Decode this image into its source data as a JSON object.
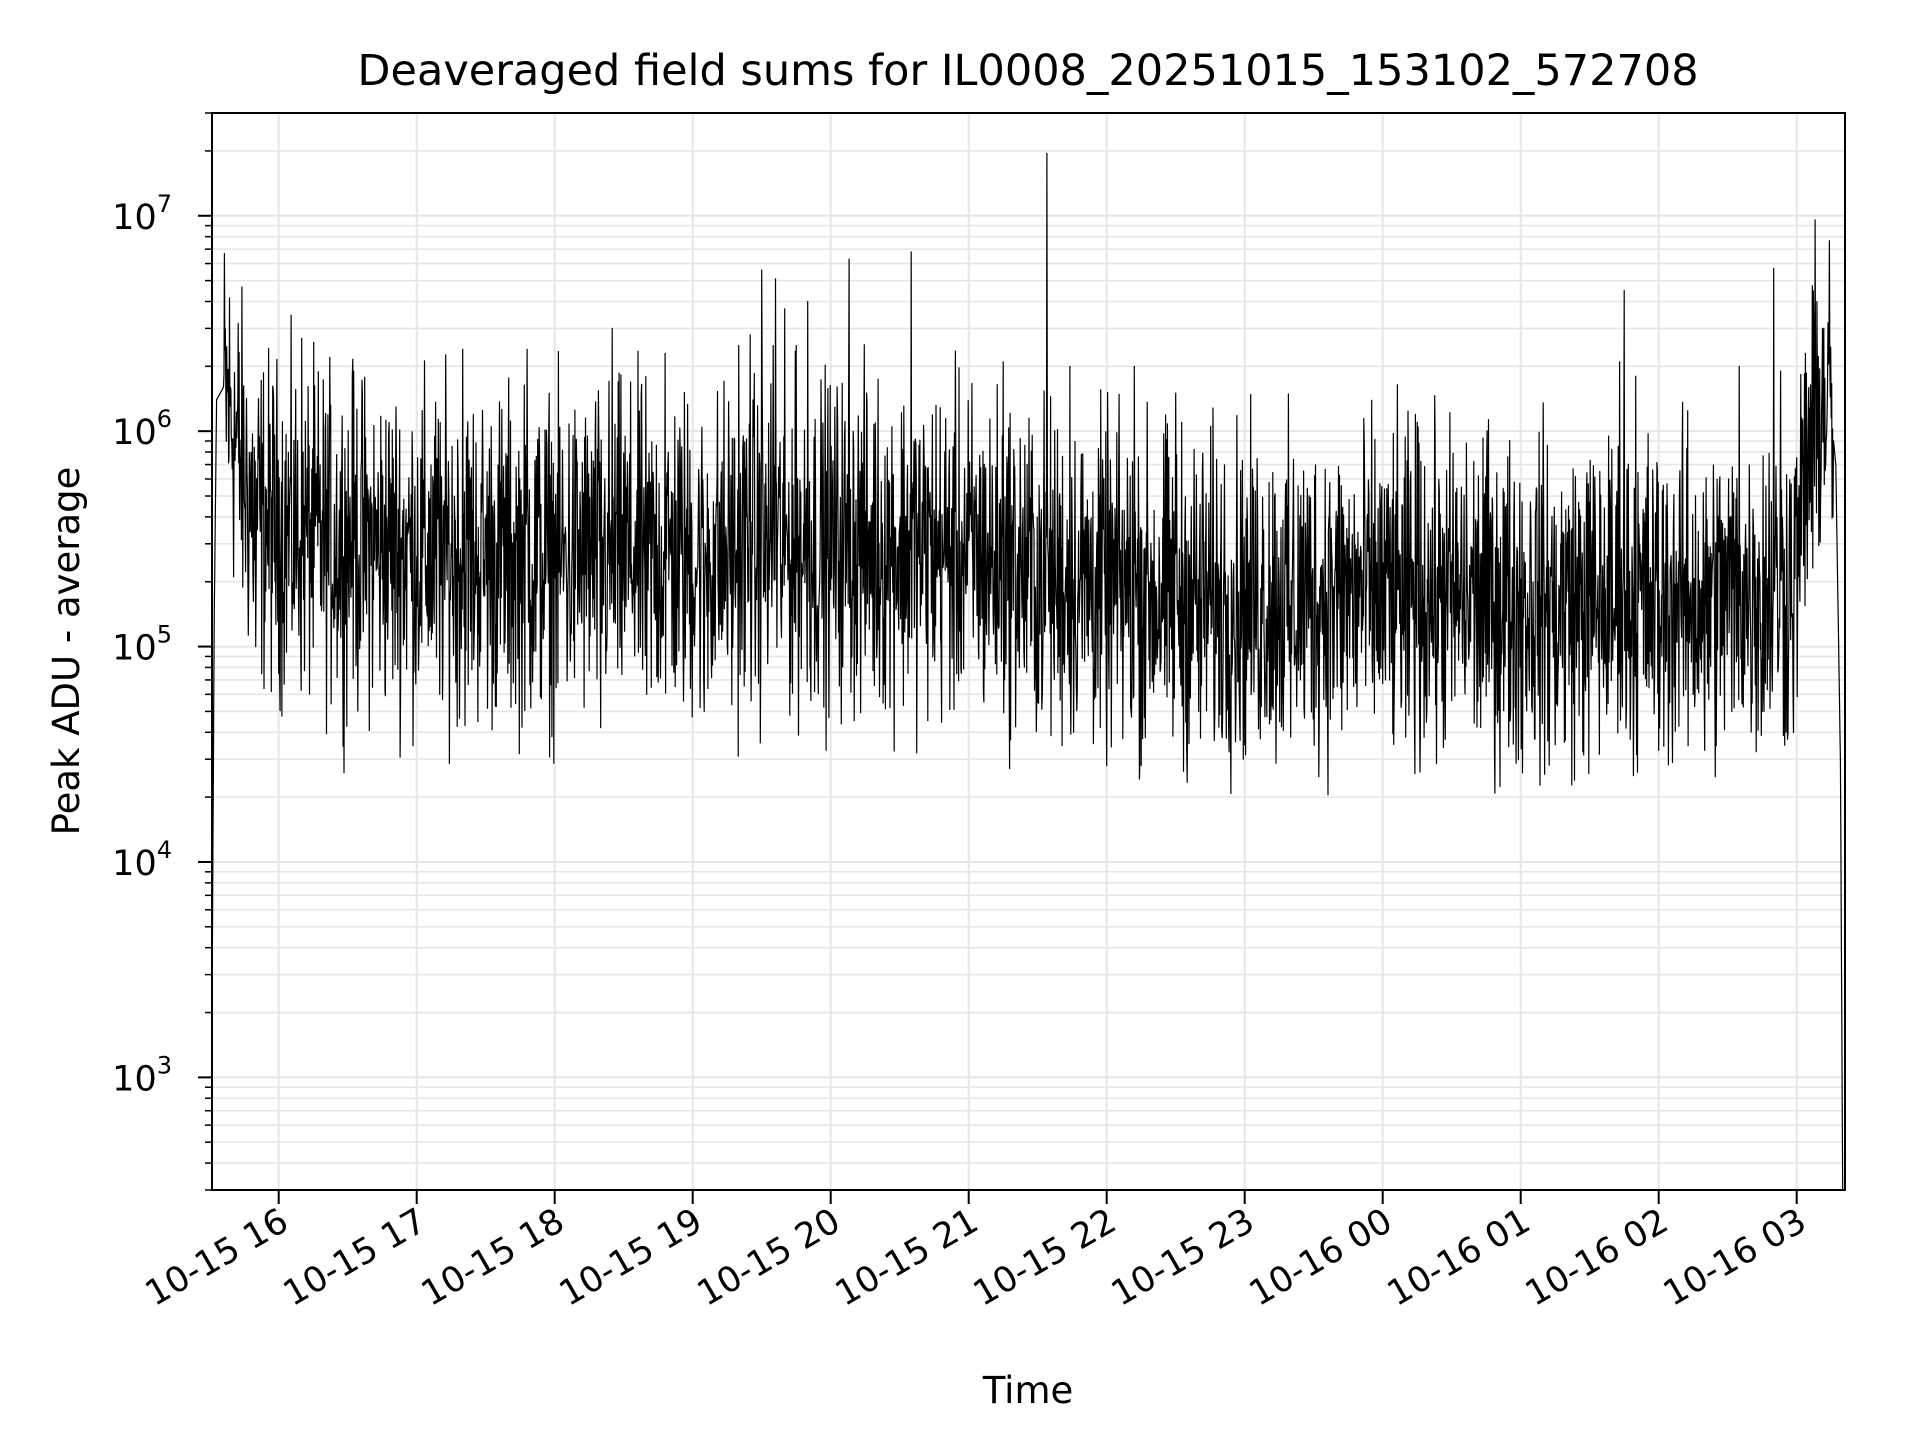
{
  "chart_data": {
    "type": "line",
    "title": "Deaveraged field sums for IL0008_20251015_153102_572708",
    "xlabel": "Time",
    "ylabel": "Peak ADU - average",
    "yscale": "log",
    "xlim": [
      "2025-10-15 15:31",
      "2025-10-16 03:21"
    ],
    "ylim": [
      300,
      30000000
    ],
    "grid": true,
    "legend": "none",
    "line_color": "#000000",
    "grid_color": "#e6e6e6",
    "x_ticks": [
      "10-15 16",
      "10-15 17",
      "10-15 18",
      "10-15 19",
      "10-15 20",
      "10-15 21",
      "10-15 22",
      "10-15 23",
      "10-16 00",
      "10-16 01",
      "10-16 02",
      "10-16 03"
    ],
    "y_ticks": [
      {
        "base": "10",
        "exp": "3",
        "value": 1000
      },
      {
        "base": "10",
        "exp": "4",
        "value": 10000
      },
      {
        "base": "10",
        "exp": "5",
        "value": 100000
      },
      {
        "base": "10",
        "exp": "6",
        "value": 1000000
      },
      {
        "base": "10",
        "exp": "7",
        "value": 10000000
      }
    ],
    "series": [
      {
        "values_hours_from_start": "see points",
        "points": [
          [
            "2025-10-15 15:31",
            2000
          ],
          [
            "2025-10-15 15:32",
            150000
          ],
          [
            "2025-10-15 15:33",
            1400000
          ],
          [
            "2025-10-15 15:36",
            1600000
          ],
          [
            "2025-10-15 15:40",
            1100000
          ],
          [
            "2025-10-15 15:45",
            600000
          ],
          [
            "2025-10-15 15:50",
            400000
          ],
          [
            "2025-10-15 16:00",
            350000
          ],
          [
            "2025-10-15 16:30",
            300000
          ],
          [
            "2025-10-15 17:00",
            280000
          ],
          [
            "2025-10-15 17:30",
            260000
          ],
          [
            "2025-10-15 18:00",
            250000
          ],
          [
            "2025-10-15 18:30",
            270000
          ],
          [
            "2025-10-15 19:00",
            260000
          ],
          [
            "2025-10-15 19:30",
            280000
          ],
          [
            "2025-10-15 20:00",
            300000
          ],
          [
            "2025-10-15 20:30",
            290000
          ],
          [
            "2025-10-15 21:00",
            270000
          ],
          [
            "2025-10-15 21:30",
            220000
          ],
          [
            "2025-10-15 22:00",
            190000
          ],
          [
            "2025-10-15 22:30",
            170000
          ],
          [
            "2025-10-15 23:00",
            165000
          ],
          [
            "2025-10-15 23:30",
            170000
          ],
          [
            "2025-10-16 00:00",
            175000
          ],
          [
            "2025-10-16 00:30",
            170000
          ],
          [
            "2025-10-16 01:00",
            160000
          ],
          [
            "2025-10-16 01:30",
            160000
          ],
          [
            "2025-10-16 02:00",
            165000
          ],
          [
            "2025-10-16 02:30",
            170000
          ],
          [
            "2025-10-16 02:59",
            200000
          ],
          [
            "2025-10-16 03:05",
            800000
          ],
          [
            "2025-10-16 03:10",
            1300000
          ],
          [
            "2025-10-16 03:14",
            1500000
          ],
          [
            "2025-10-16 03:17",
            700000
          ],
          [
            "2025-10-16 03:19",
            30000
          ],
          [
            "2025-10-16 03:20",
            300
          ]
        ],
        "spikes": [
          [
            "2025-10-15 16:10",
            2700000
          ],
          [
            "2025-10-15 16:32",
            1800000
          ],
          [
            "2025-10-15 17:20",
            2400000
          ],
          [
            "2025-10-15 17:48",
            2400000
          ],
          [
            "2025-10-15 18:25",
            3000000
          ],
          [
            "2025-10-15 18:48",
            2300000
          ],
          [
            "2025-10-15 19:20",
            2500000
          ],
          [
            "2025-10-15 19:25",
            2800000
          ],
          [
            "2025-10-15 19:30",
            5600000
          ],
          [
            "2025-10-15 19:35",
            2500000
          ],
          [
            "2025-10-15 19:36",
            5100000
          ],
          [
            "2025-10-15 19:40",
            3700000
          ],
          [
            "2025-10-15 19:45",
            2500000
          ],
          [
            "2025-10-15 19:50",
            4000000
          ],
          [
            "2025-10-15 20:08",
            6300000
          ],
          [
            "2025-10-15 20:35",
            6800000
          ],
          [
            "2025-10-15 21:15",
            2100000
          ],
          [
            "2025-10-15 21:30",
            3300000
          ],
          [
            "2025-10-15 21:34",
            19500000
          ],
          [
            "2025-10-15 21:44",
            2000000
          ],
          [
            "2025-10-15 22:12",
            2000000
          ],
          [
            "2025-10-15 22:30",
            1500000
          ],
          [
            "2025-10-16 00:15",
            1100000
          ],
          [
            "2025-10-16 01:43",
            2100000
          ],
          [
            "2025-10-16 01:45",
            4500000
          ],
          [
            "2025-10-16 01:50",
            1800000
          ],
          [
            "2025-10-16 02:35",
            2000000
          ],
          [
            "2025-10-16 02:50",
            5700000
          ],
          [
            "2025-10-16 02:53",
            1900000
          ]
        ],
        "dips": [
          [
            "2025-10-15 15:50",
            100000
          ],
          [
            "2025-10-15 16:00",
            75000
          ],
          [
            "2025-10-15 17:10",
            60000
          ],
          [
            "2025-10-15 18:20",
            42000
          ],
          [
            "2025-10-15 18:40",
            60000
          ],
          [
            "2025-10-15 19:05",
            50000
          ],
          [
            "2025-10-15 21:30",
            55000
          ],
          [
            "2025-10-15 22:40",
            50000
          ],
          [
            "2025-10-15 23:00",
            35000
          ],
          [
            "2025-10-15 23:20",
            38000
          ],
          [
            "2025-10-16 00:10",
            38000
          ],
          [
            "2025-10-16 01:15",
            35000
          ],
          [
            "2025-10-16 02:00",
            33000
          ],
          [
            "2025-10-16 02:20",
            33000
          ],
          [
            "2025-10-16 02:45",
            50000
          ]
        ]
      }
    ]
  }
}
